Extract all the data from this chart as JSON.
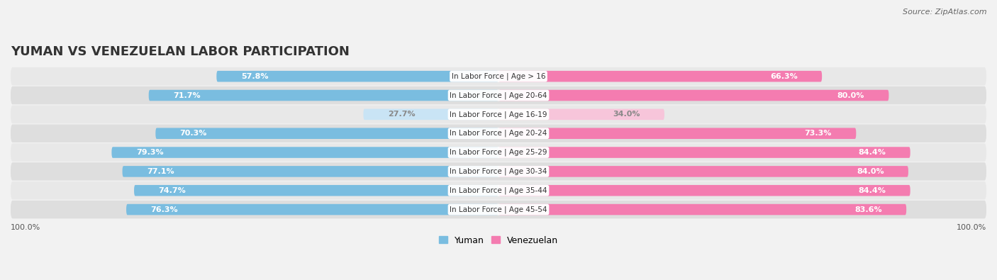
{
  "title": "YUMAN VS VENEZUELAN LABOR PARTICIPATION",
  "source": "Source: ZipAtlas.com",
  "categories": [
    "In Labor Force | Age > 16",
    "In Labor Force | Age 20-64",
    "In Labor Force | Age 16-19",
    "In Labor Force | Age 20-24",
    "In Labor Force | Age 25-29",
    "In Labor Force | Age 30-34",
    "In Labor Force | Age 35-44",
    "In Labor Force | Age 45-54"
  ],
  "yuman_values": [
    57.8,
    71.7,
    27.7,
    70.3,
    79.3,
    77.1,
    74.7,
    76.3
  ],
  "venezuelan_values": [
    66.3,
    80.0,
    34.0,
    73.3,
    84.4,
    84.0,
    84.4,
    83.6
  ],
  "yuman_color_normal": "#7abde0",
  "yuman_color_light": "#c9e4f5",
  "venezuelan_color_normal": "#f47cb0",
  "venezuelan_color_light": "#f7c5da",
  "light_indices": [
    2
  ],
  "bg_color": "#f2f2f2",
  "row_bg_colors": [
    "#e8e8e8",
    "#dedede"
  ],
  "label_color_white": "#ffffff",
  "label_color_dark": "#888888",
  "axis_label": "100.0%",
  "legend_yuman": "Yuman",
  "legend_venezuelan": "Venezuelan",
  "max_val": 100.0,
  "title_fontsize": 13,
  "source_fontsize": 8,
  "bar_label_fontsize": 8,
  "cat_label_fontsize": 7.5
}
